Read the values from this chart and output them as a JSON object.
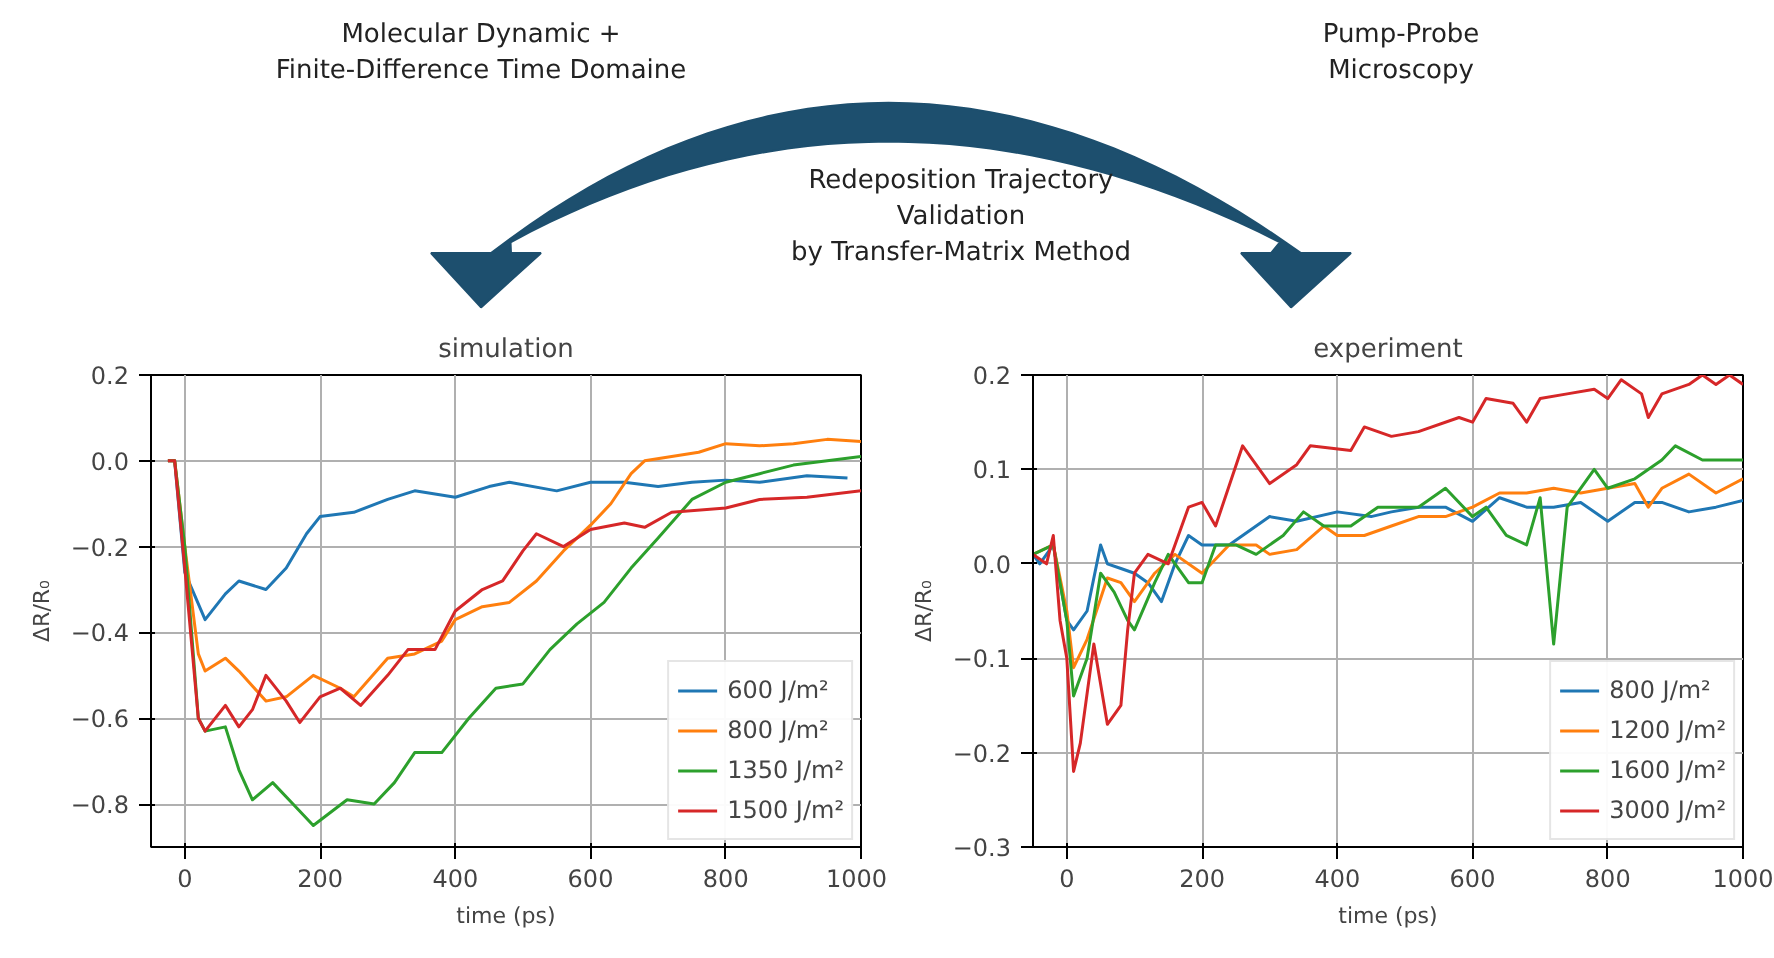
{
  "chart_data": [
    {
      "type": "other",
      "annotations": [
        "Molecular Dynamic +\nFinite-Difference Time Domaine",
        "Pump-Probe\nMicroscopy",
        "Redeposition Trajectory\nValidation\nby Transfer-Matrix Method"
      ]
    },
    {
      "type": "line",
      "title": "simulation",
      "xlabel": "time (ps)",
      "ylabel": "ΔR/R₀",
      "xlim": [
        -50,
        1000
      ],
      "ylim": [
        -0.9,
        0.2
      ],
      "xticks": [
        0,
        200,
        400,
        600,
        800,
        1000
      ],
      "yticks": [
        -0.8,
        -0.6,
        -0.4,
        -0.2,
        {
          "value": 0,
          "label": "0.0"
        },
        0.2
      ],
      "grid": true,
      "legend": "bottom right",
      "series": [
        {
          "name": "600 J/m²",
          "color": "#1f77b4",
          "x": [
            -25,
            -15,
            0,
            30,
            60,
            80,
            120,
            150,
            180,
            200,
            250,
            300,
            340,
            400,
            450,
            480,
            550,
            600,
            650,
            700,
            750,
            800,
            850,
            920,
            980
          ],
          "values": [
            0,
            0,
            -0.26,
            -0.37,
            -0.31,
            -0.28,
            -0.3,
            -0.25,
            -0.17,
            -0.13,
            -0.12,
            -0.09,
            -0.07,
            -0.085,
            -0.06,
            -0.05,
            -0.07,
            -0.05,
            -0.05,
            -0.06,
            -0.05,
            -0.045,
            -0.05,
            -0.035,
            -0.04
          ]
        },
        {
          "name": "800 J/m²",
          "color": "#ff7f0e",
          "x": [
            -25,
            -15,
            0,
            20,
            30,
            60,
            80,
            120,
            150,
            190,
            230,
            250,
            300,
            340,
            380,
            400,
            440,
            480,
            520,
            560,
            600,
            630,
            660,
            680,
            720,
            760,
            800,
            850,
            900,
            950,
            1000
          ],
          "values": [
            0,
            0,
            -0.2,
            -0.45,
            -0.49,
            -0.46,
            -0.49,
            -0.56,
            -0.55,
            -0.5,
            -0.53,
            -0.55,
            -0.46,
            -0.45,
            -0.42,
            -0.37,
            -0.34,
            -0.33,
            -0.28,
            -0.21,
            -0.15,
            -0.1,
            -0.03,
            0.0,
            0.01,
            0.02,
            0.04,
            0.035,
            0.04,
            0.05,
            0.045
          ]
        },
        {
          "name": "1350 J/m²",
          "color": "#2ca02c",
          "x": [
            -25,
            -15,
            0,
            20,
            30,
            60,
            80,
            100,
            130,
            160,
            190,
            240,
            280,
            310,
            340,
            380,
            420,
            460,
            500,
            540,
            580,
            620,
            660,
            700,
            750,
            800,
            850,
            900,
            950,
            1000
          ],
          "values": [
            0,
            0,
            -0.2,
            -0.6,
            -0.63,
            -0.62,
            -0.72,
            -0.79,
            -0.75,
            -0.8,
            -0.85,
            -0.79,
            -0.8,
            -0.75,
            -0.68,
            -0.68,
            -0.6,
            -0.53,
            -0.52,
            -0.44,
            -0.38,
            -0.33,
            -0.25,
            -0.18,
            -0.09,
            -0.05,
            -0.03,
            -0.01,
            0.0,
            0.01
          ]
        },
        {
          "name": "1500 J/m²",
          "color": "#d62728",
          "x": [
            -25,
            -15,
            0,
            20,
            30,
            60,
            80,
            100,
            120,
            150,
            170,
            200,
            230,
            260,
            300,
            330,
            370,
            400,
            440,
            470,
            500,
            520,
            560,
            600,
            650,
            680,
            720,
            800,
            850,
            920,
            1000
          ],
          "values": [
            0,
            0,
            -0.25,
            -0.6,
            -0.63,
            -0.57,
            -0.62,
            -0.58,
            -0.5,
            -0.56,
            -0.61,
            -0.55,
            -0.53,
            -0.57,
            -0.5,
            -0.44,
            -0.44,
            -0.35,
            -0.3,
            -0.28,
            -0.21,
            -0.17,
            -0.2,
            -0.16,
            -0.145,
            -0.155,
            -0.12,
            -0.11,
            -0.09,
            -0.085,
            -0.07
          ]
        }
      ]
    },
    {
      "type": "line",
      "title": "experiment",
      "xlabel": "time (ps)",
      "ylabel": "ΔR/R₀",
      "xlim": [
        -50,
        1000
      ],
      "ylim": [
        -0.3,
        0.2
      ],
      "xticks": [
        0,
        200,
        400,
        600,
        800,
        1000
      ],
      "yticks": [
        -0.3,
        -0.2,
        -0.1,
        {
          "value": 0,
          "label": "0.0"
        },
        0.1,
        0.2
      ],
      "grid": true,
      "legend": "bottom right",
      "series": [
        {
          "name": "800 J/m²",
          "color": "#1f77b4",
          "x": [
            -50,
            -40,
            -20,
            -10,
            0,
            10,
            30,
            50,
            60,
            80,
            100,
            120,
            140,
            160,
            180,
            200,
            240,
            260,
            300,
            340,
            400,
            450,
            480,
            520,
            560,
            600,
            640,
            680,
            720,
            760,
            800,
            840,
            880,
            920,
            960,
            1000
          ],
          "values": [
            0.01,
            0,
            0.02,
            -0.02,
            -0.06,
            -0.07,
            -0.05,
            0.02,
            0.0,
            -0.005,
            -0.01,
            -0.02,
            -0.04,
            0.0,
            0.03,
            0.02,
            0.02,
            0.03,
            0.05,
            0.045,
            0.055,
            0.05,
            0.055,
            0.06,
            0.06,
            0.045,
            0.07,
            0.06,
            0.06,
            0.065,
            0.045,
            0.065,
            0.065,
            0.055,
            0.06,
            0.067
          ]
        },
        {
          "name": "1200 J/m²",
          "color": "#ff7f0e",
          "x": [
            -50,
            -20,
            0,
            10,
            30,
            60,
            80,
            100,
            130,
            160,
            200,
            240,
            280,
            300,
            340,
            380,
            400,
            440,
            480,
            520,
            560,
            600,
            640,
            680,
            720,
            760,
            800,
            840,
            860,
            880,
            920,
            960,
            1000
          ],
          "values": [
            0.01,
            0.02,
            -0.05,
            -0.11,
            -0.08,
            -0.015,
            -0.02,
            -0.04,
            -0.01,
            0.01,
            -0.01,
            0.02,
            0.02,
            0.01,
            0.015,
            0.04,
            0.03,
            0.03,
            0.04,
            0.05,
            0.05,
            0.06,
            0.075,
            0.075,
            0.08,
            0.075,
            0.08,
            0.085,
            0.06,
            0.08,
            0.095,
            0.075,
            0.09
          ]
        },
        {
          "name": "1600 J/m²",
          "color": "#2ca02c",
          "x": [
            -50,
            -20,
            0,
            10,
            30,
            50,
            70,
            90,
            100,
            130,
            150,
            180,
            200,
            220,
            250,
            280,
            320,
            350,
            380,
            420,
            460,
            520,
            560,
            600,
            620,
            650,
            680,
            700,
            720,
            740,
            780,
            800,
            840,
            880,
            900,
            940,
            1000
          ],
          "values": [
            0.01,
            0.02,
            -0.06,
            -0.14,
            -0.1,
            -0.01,
            -0.03,
            -0.06,
            -0.07,
            -0.02,
            0.01,
            -0.02,
            -0.02,
            0.02,
            0.02,
            0.01,
            0.03,
            0.055,
            0.04,
            0.04,
            0.06,
            0.06,
            0.08,
            0.05,
            0.06,
            0.03,
            0.02,
            0.07,
            -0.085,
            0.06,
            0.1,
            0.08,
            0.09,
            0.11,
            0.125,
            0.11,
            0.11
          ]
        },
        {
          "name": "3000 J/m²",
          "color": "#d62728",
          "x": [
            -50,
            -30,
            -20,
            -10,
            0,
            10,
            20,
            40,
            60,
            80,
            90,
            100,
            120,
            150,
            180,
            200,
            220,
            260,
            300,
            340,
            360,
            420,
            440,
            480,
            520,
            580,
            600,
            620,
            660,
            680,
            700,
            740,
            780,
            800,
            820,
            850,
            860,
            880,
            920,
            940,
            960,
            980,
            1000
          ],
          "values": [
            0.01,
            0.0,
            0.03,
            -0.06,
            -0.1,
            -0.22,
            -0.19,
            -0.085,
            -0.17,
            -0.15,
            -0.07,
            -0.01,
            0.01,
            0.0,
            0.06,
            0.065,
            0.04,
            0.125,
            0.085,
            0.105,
            0.125,
            0.12,
            0.145,
            0.135,
            0.14,
            0.155,
            0.15,
            0.175,
            0.17,
            0.15,
            0.175,
            0.18,
            0.185,
            0.175,
            0.195,
            0.18,
            0.155,
            0.18,
            0.19,
            0.2,
            0.19,
            0.2,
            0.19
          ]
        }
      ]
    }
  ]
}
